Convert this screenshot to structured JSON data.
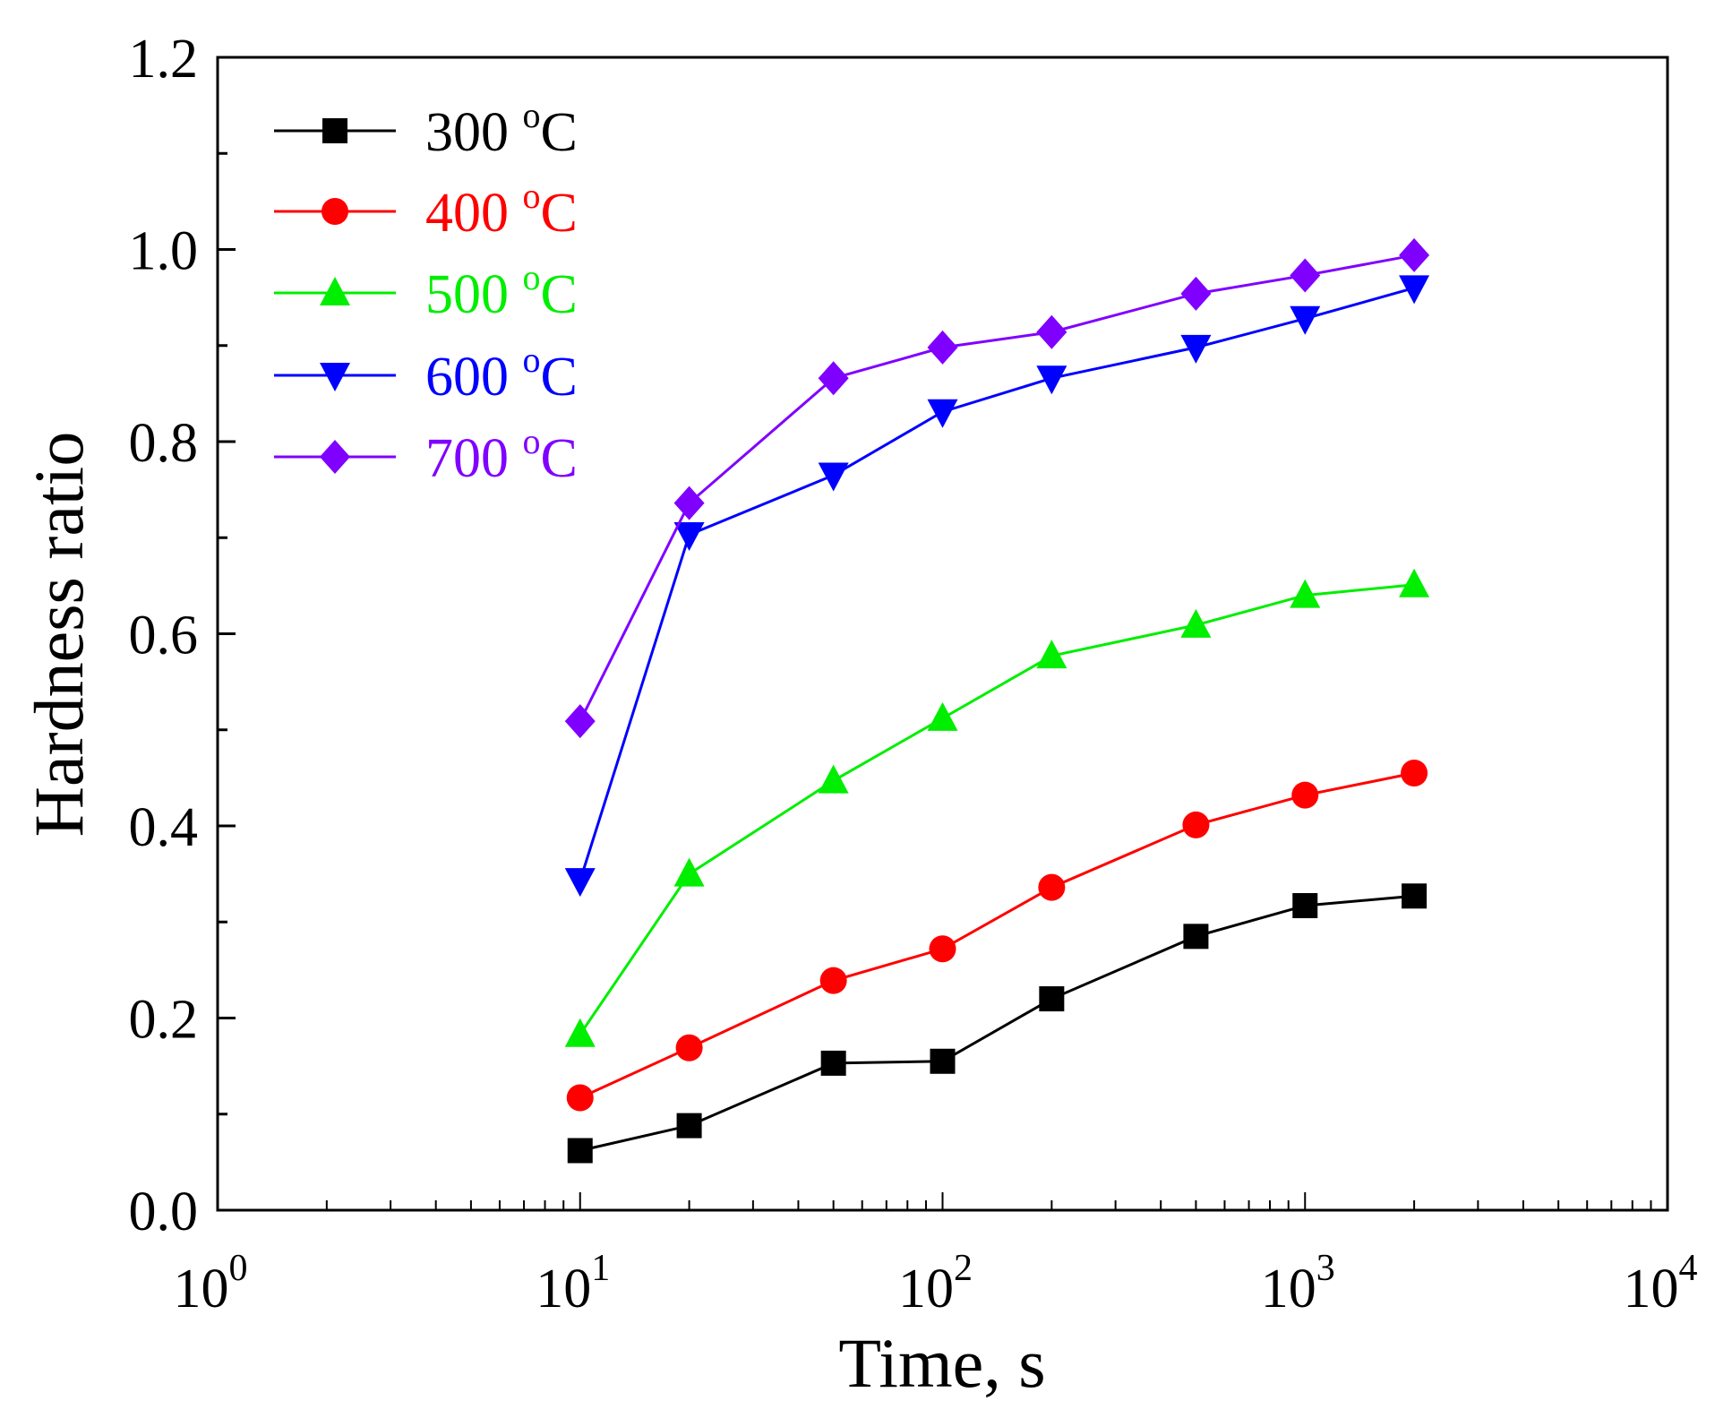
{
  "chart_data": {
    "type": "line",
    "title": "",
    "xlabel": "Time, s",
    "ylabel": "Hardness ratio",
    "xscale": "log",
    "xlim": [
      1,
      10000
    ],
    "ylim": [
      0.0,
      1.2
    ],
    "x_tick_labels": [
      {
        "base": "10",
        "exp": "0"
      },
      {
        "base": "10",
        "exp": "1"
      },
      {
        "base": "10",
        "exp": "2"
      },
      {
        "base": "10",
        "exp": "3"
      },
      {
        "base": "10",
        "exp": "4"
      }
    ],
    "y_ticks": [
      0.0,
      0.2,
      0.4,
      0.6,
      0.8,
      1.0,
      1.2
    ],
    "y_tick_labels": [
      "0.0",
      "0.2",
      "0.4",
      "0.6",
      "0.8",
      "1.0",
      "1.2"
    ],
    "grid": false,
    "legend_position": "top-left",
    "x": [
      10,
      20,
      50,
      100,
      200,
      500,
      1000,
      2000
    ],
    "series": [
      {
        "name": "300",
        "unit": "oC",
        "color": "#000000",
        "marker": "square",
        "values": [
          0.062,
          0.088,
          0.153,
          0.155,
          0.22,
          0.285,
          0.317,
          0.327
        ]
      },
      {
        "name": "400",
        "unit": "oC",
        "color": "#ff0000",
        "marker": "circle",
        "values": [
          0.117,
          0.169,
          0.239,
          0.272,
          0.336,
          0.401,
          0.432,
          0.455
        ]
      },
      {
        "name": "500",
        "unit": "oC",
        "color": "#00ee00",
        "marker": "triangle-up",
        "values": [
          0.183,
          0.35,
          0.447,
          0.512,
          0.577,
          0.609,
          0.64,
          0.651
        ]
      },
      {
        "name": "600",
        "unit": "oC",
        "color": "#0000ff",
        "marker": "triangle-down",
        "values": [
          0.343,
          0.703,
          0.765,
          0.831,
          0.866,
          0.898,
          0.928,
          0.96
        ]
      },
      {
        "name": "700",
        "unit": "oC",
        "color": "#8000ff",
        "marker": "diamond",
        "values": [
          0.509,
          0.736,
          0.866,
          0.898,
          0.914,
          0.954,
          0.973,
          0.994
        ]
      }
    ]
  }
}
